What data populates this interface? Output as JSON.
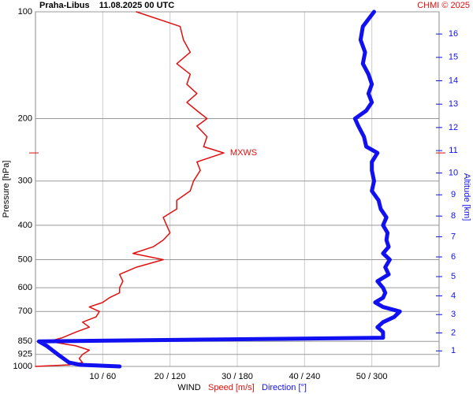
{
  "chart_data": {
    "type": "profile",
    "title": "Praha-Libus    11.08.2025 00 UTC",
    "copyright": "CHMI © 2025",
    "y_label": "Pressure [hPa]",
    "y2_label": "Altitude [km]",
    "x_label": "WIND",
    "log_y": true,
    "grid": true,
    "annotation": "MXWS",
    "pressure": [
      1000,
      990,
      975,
      950,
      925,
      900,
      875,
      850,
      830,
      800,
      775,
      750,
      725,
      700,
      680,
      660,
      640,
      620,
      600,
      575,
      550,
      525,
      500,
      480,
      460,
      440,
      420,
      400,
      380,
      360,
      340,
      320,
      300,
      280,
      265,
      250,
      240,
      225,
      210,
      200,
      190,
      180,
      170,
      160,
      150,
      140,
      130,
      120,
      110,
      100
    ],
    "series": [
      {
        "name": "Speed [m/s]",
        "color": "#e01010",
        "values": [
          0,
          5,
          7,
          6.5,
          7,
          8,
          6,
          2,
          4,
          6,
          8,
          7,
          9,
          9.5,
          8,
          10,
          11,
          12.5,
          12.5,
          13,
          12.5,
          15,
          19,
          14.5,
          17.5,
          19,
          20,
          19.5,
          19,
          21,
          21,
          23,
          23.5,
          24.5,
          24,
          28,
          25,
          25.5,
          24,
          25.5,
          24,
          22.5,
          24,
          22.5,
          23,
          21,
          23,
          22,
          21.5,
          15
        ]
      },
      {
        "name": "Direction [°]",
        "color": "#1010f0",
        "axis": "x2",
        "values": [
          75,
          40,
          30,
          25,
          20,
          15,
          10,
          3,
          310,
          310,
          305,
          310,
          320,
          325,
          310,
          303,
          310,
          312,
          310,
          305,
          315,
          312,
          316,
          310,
          315,
          313,
          314,
          310,
          313,
          308,
          306,
          300,
          302,
          300,
          300,
          305,
          295,
          293,
          288,
          285,
          295,
          300,
          297,
          300,
          297,
          292,
          294,
          290,
          292,
          302
        ]
      }
    ],
    "xlim": [
      0,
      60
    ],
    "x2lim": [
      0,
      360
    ],
    "xticks": [
      {
        "value": 10,
        "label": "10 / 60"
      },
      {
        "value": 20,
        "label": "20 / 120"
      },
      {
        "value": 30,
        "label": "30 / 180"
      },
      {
        "value": 40,
        "label": "40 / 240"
      },
      {
        "value": 50,
        "label": "50 / 300"
      }
    ],
    "ylim": [
      100,
      1000
    ],
    "yticks": [
      100,
      200,
      300,
      400,
      500,
      600,
      700,
      850,
      925,
      1000
    ],
    "y2ticks": [
      1,
      2,
      3,
      4,
      5,
      6,
      7,
      8,
      9,
      10,
      11,
      12,
      13,
      14,
      15,
      16
    ]
  }
}
